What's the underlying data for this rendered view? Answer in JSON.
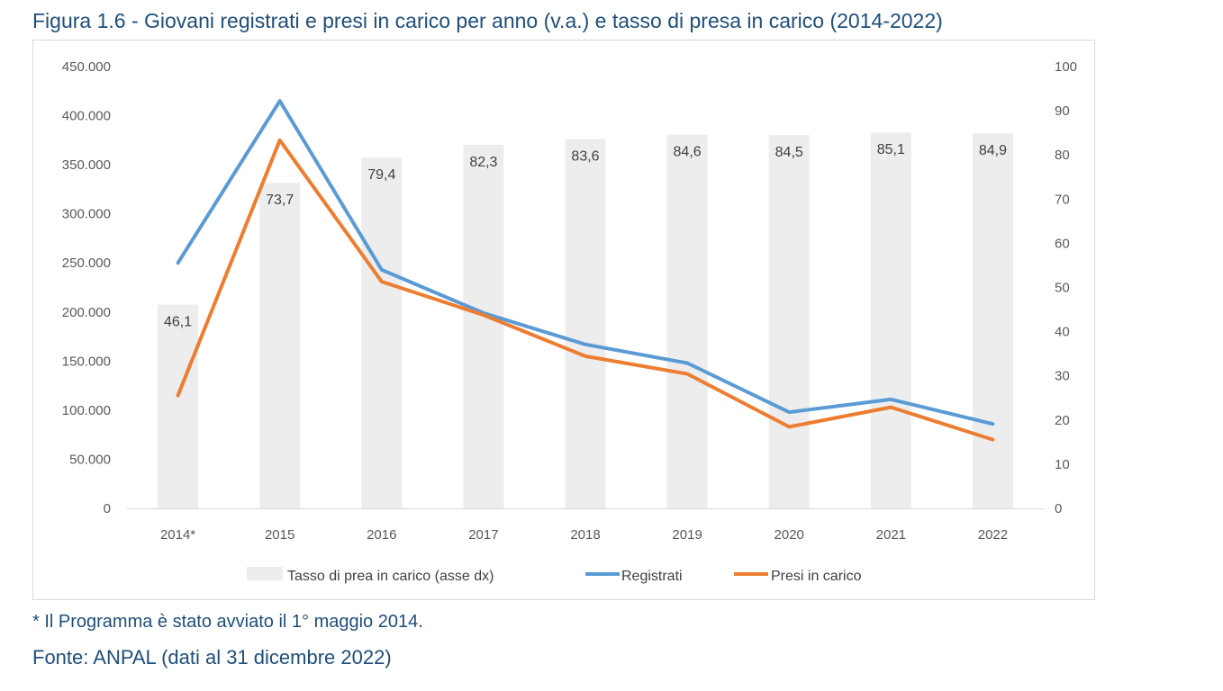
{
  "figure": {
    "title": "Figura 1.6 - Giovani registrati e presi in carico per anno (v.a.) e tasso di presa in carico (2014-2022)",
    "note": "* Il Programma è stato avviato il 1° maggio 2014.",
    "source": "Fonte: ANPAL (dati al 31 dicembre 2022)"
  },
  "chart_data": {
    "type": "bar",
    "categories": [
      "2014*",
      "2015",
      "2016",
      "2017",
      "2018",
      "2019",
      "2020",
      "2021",
      "2022"
    ],
    "series": [
      {
        "name": "Tasso di prea in carico (asse dx)",
        "type": "bar",
        "axis": "right",
        "color": "#ededed",
        "values": [
          46.1,
          73.7,
          79.4,
          82.3,
          83.6,
          84.6,
          84.5,
          85.1,
          84.9
        ],
        "labels": [
          "46,1",
          "73,7",
          "79,4",
          "82,3",
          "83,6",
          "84,6",
          "84,5",
          "85,1",
          "84,9"
        ]
      },
      {
        "name": "Registrati",
        "type": "line",
        "axis": "left",
        "color": "#5b9bd5",
        "values": [
          250000,
          415000,
          243000,
          199000,
          167000,
          148000,
          98000,
          111000,
          86000
        ]
      },
      {
        "name": "Presi in carico",
        "type": "line",
        "axis": "left",
        "color": "#ed7d31",
        "values": [
          115000,
          375000,
          231000,
          197000,
          155000,
          137000,
          83000,
          103000,
          70000
        ]
      }
    ],
    "y_left": {
      "min": 0,
      "max": 450000,
      "step": 50000,
      "ticks": [
        "0",
        "50.000",
        "100.000",
        "150.000",
        "200.000",
        "250.000",
        "300.000",
        "350.000",
        "400.000",
        "450.000"
      ]
    },
    "y_right": {
      "min": 0,
      "max": 100,
      "step": 10,
      "ticks": [
        "0",
        "10",
        "20",
        "30",
        "40",
        "50",
        "60",
        "70",
        "80",
        "90",
        "100"
      ]
    },
    "grid": false,
    "legend": "bottom"
  }
}
